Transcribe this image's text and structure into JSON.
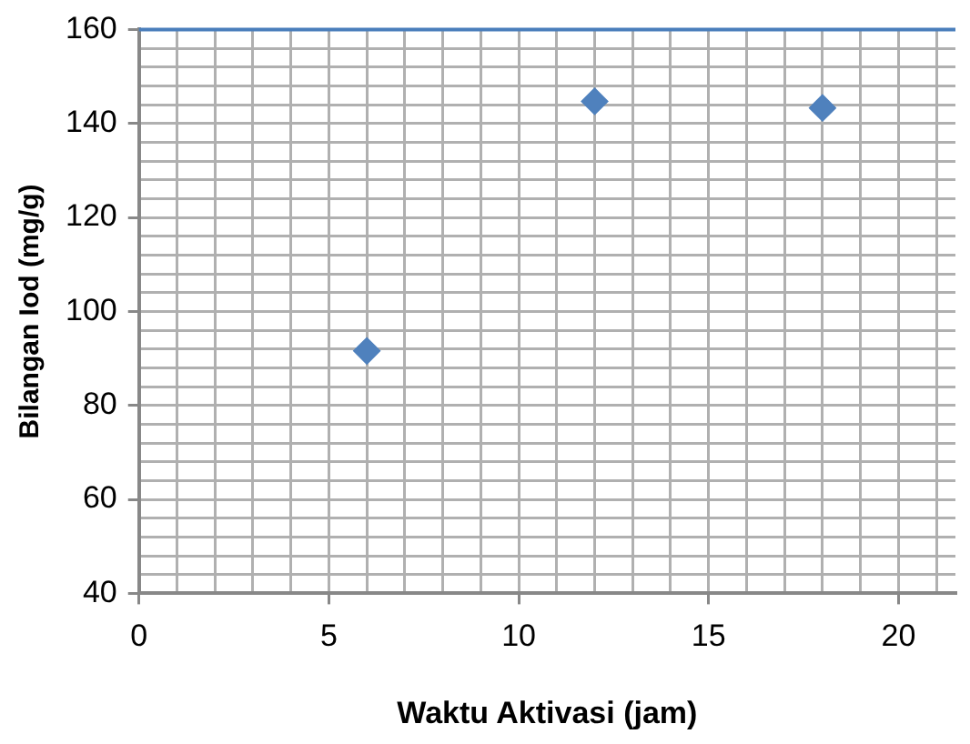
{
  "chart_data": {
    "type": "scatter",
    "xlabel": "Waktu Aktivasi (jam)",
    "ylabel": "Bilangan Iod (mg/g)",
    "x": [
      6,
      12,
      18
    ],
    "series": [
      {
        "color": "#4f81bd",
        "values": [
          91.6,
          144.7,
          143.3
        ]
      }
    ],
    "xlim": [
      0,
      21.5
    ],
    "xticks": [
      0,
      5,
      10,
      15,
      20
    ],
    "ylim": [
      40,
      160
    ],
    "yticks": [
      40,
      60,
      80,
      100,
      120,
      140,
      160
    ],
    "grid": true,
    "legend": false,
    "marker": "diamond",
    "ref_lines": [
      {
        "axis": "y",
        "value": 160,
        "color": "#4a7ebb"
      }
    ]
  }
}
